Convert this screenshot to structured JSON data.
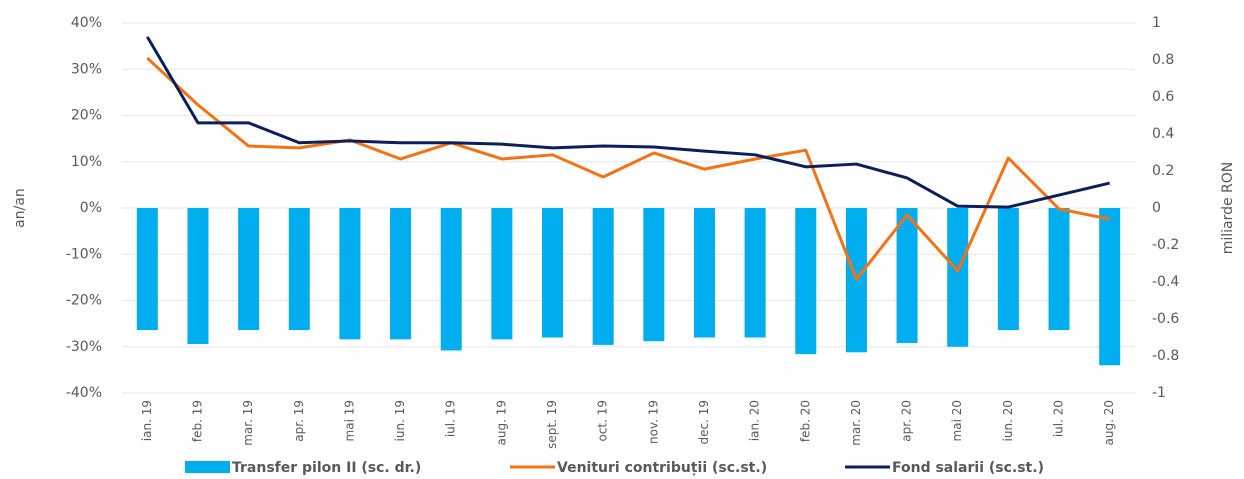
{
  "chart_data": {
    "type": "combo",
    "categories": [
      "ian. 19",
      "feb. 19",
      "mar. 19",
      "apr. 19",
      "mai 19",
      "iun. 19",
      "iul. 19",
      "aug. 19",
      "sept. 19",
      "oct. 19",
      "nov. 19",
      "dec. 19",
      "ian. 20",
      "feb. 20",
      "mar. 20",
      "apr. 20",
      "mai 20",
      "iun. 20",
      "iul. 20",
      "aug. 20"
    ],
    "y_label": "an/an",
    "y2_label": "miliarde RON",
    "ylim": [
      -40,
      40
    ],
    "yticks": [
      {
        "value": 40,
        "label": "40%"
      },
      {
        "value": 30,
        "label": "30%"
      },
      {
        "value": 20,
        "label": "20%"
      },
      {
        "value": 10,
        "label": "10%"
      },
      {
        "value": 0,
        "label": "0%"
      },
      {
        "value": -10,
        "label": "-10%"
      },
      {
        "value": -20,
        "label": "-20%"
      },
      {
        "value": -30,
        "label": "-30%"
      },
      {
        "value": -40,
        "label": "-40%"
      }
    ],
    "y2lim": [
      -1,
      1
    ],
    "y2ticks": [
      1,
      0.8,
      0.6,
      0.4,
      0.2,
      0,
      -0.2,
      -0.4,
      -0.6,
      -0.8,
      -1
    ],
    "grid": true,
    "series": [
      {
        "name": "Transfer pilon II (sc. dr.)",
        "type": "bar",
        "axis": "y2",
        "color": "#00aeef",
        "values": [
          -0.66,
          -0.735,
          -0.66,
          -0.66,
          -0.71,
          -0.71,
          -0.77,
          -0.71,
          -0.7,
          -0.74,
          -0.72,
          -0.7,
          -0.7,
          -0.79,
          -0.78,
          -0.73,
          -0.75,
          -0.66,
          -0.66,
          -0.85
        ]
      },
      {
        "name": "Venituri contribuții (sc.st.)",
        "type": "line",
        "color": "#f47216",
        "values": [
          32.4,
          22.3,
          13.4,
          13.0,
          14.7,
          10.6,
          14.1,
          10.6,
          11.5,
          6.7,
          11.9,
          8.4,
          10.6,
          12.5,
          -15.4,
          -1.5,
          -13.6,
          10.8,
          -0.2,
          -2.4
        ]
      },
      {
        "name": "Fond salarii (sc.st.)",
        "type": "line",
        "color": "#0b1f5c",
        "values": [
          37.0,
          18.4,
          18.4,
          14.1,
          14.5,
          14.1,
          14.1,
          13.8,
          13.0,
          13.4,
          13.2,
          12.3,
          11.5,
          8.9,
          9.5,
          6.5,
          0.4,
          0.2,
          2.8,
          5.4
        ]
      }
    ]
  }
}
